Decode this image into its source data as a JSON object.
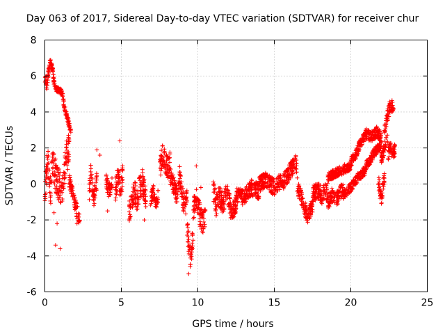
{
  "chart_data": {
    "type": "scatter",
    "title": "Day 063 of 2017, Sidereal Day-to-day VTEC variation (SDTVAR) for receiver chur",
    "xlabel": "GPS time / hours",
    "ylabel": "SDTVAR / TECUs",
    "xlim": [
      0,
      25
    ],
    "ylim": [
      -6,
      8
    ],
    "xticks": [
      0,
      5,
      10,
      15,
      20,
      25
    ],
    "yticks": [
      -6,
      -4,
      -2,
      0,
      2,
      4,
      6,
      8
    ],
    "xtick_labels": [
      "0",
      "5",
      "10",
      "15",
      "20",
      "25"
    ],
    "ytick_labels": [
      "-6",
      "-4",
      "-2",
      "0",
      "2",
      "4",
      "6",
      "8"
    ],
    "grid": true,
    "marker": "+",
    "color": "#ff0000",
    "series": [
      {
        "name": "SDTVAR",
        "segments": [
          {
            "x0": 0.0,
            "x1": 0.12,
            "pts": [
              [
                0.0,
                5.6
              ],
              [
                0.05,
                5.9
              ],
              [
                0.1,
                5.5
              ],
              [
                0.12,
                5.2
              ]
            ],
            "spread": 0.3
          },
          {
            "x0": 0.12,
            "x1": 0.35,
            "pts": [
              [
                0.12,
                5.2
              ],
              [
                0.2,
                6.0
              ],
              [
                0.3,
                6.6
              ],
              [
                0.35,
                6.8
              ]
            ],
            "spread": 0.2
          },
          {
            "x0": 0.35,
            "x1": 0.7,
            "pts": [
              [
                0.35,
                6.8
              ],
              [
                0.5,
                6.4
              ],
              [
                0.6,
                5.6
              ],
              [
                0.7,
                5.3
              ]
            ],
            "spread": 0.2
          },
          {
            "x0": 0.7,
            "x1": 1.2,
            "pts": [
              [
                0.7,
                5.3
              ],
              [
                0.9,
                5.2
              ],
              [
                1.1,
                5.1
              ],
              [
                1.2,
                4.8
              ]
            ],
            "spread": 0.15
          },
          {
            "x0": 1.2,
            "x1": 1.7,
            "pts": [
              [
                1.2,
                4.6
              ],
              [
                1.4,
                3.9
              ],
              [
                1.55,
                3.4
              ],
              [
                1.7,
                2.9
              ]
            ],
            "spread": 0.2
          },
          {
            "x0": 0.0,
            "x1": 0.4,
            "pts": [
              [
                0.0,
                -0.4
              ],
              [
                0.1,
                0.6
              ],
              [
                0.2,
                1.2
              ],
              [
                0.3,
                0.2
              ],
              [
                0.4,
                -0.6
              ]
            ],
            "spread": 0.8
          },
          {
            "x0": 0.4,
            "x1": 1.0,
            "pts": [
              [
                0.4,
                0.4
              ],
              [
                0.5,
                1.2
              ],
              [
                0.6,
                0.8
              ],
              [
                0.8,
                0.2
              ],
              [
                1.0,
                -0.2
              ]
            ],
            "spread": 0.9
          },
          {
            "x0": 1.0,
            "x1": 1.6,
            "pts": [
              [
                1.0,
                -0.6
              ],
              [
                1.2,
                0.0
              ],
              [
                1.4,
                1.6
              ],
              [
                1.6,
                2.2
              ]
            ],
            "spread": 0.8
          },
          {
            "x0": 1.6,
            "x1": 2.3,
            "pts": [
              [
                1.6,
                0.2
              ],
              [
                1.8,
                -0.4
              ],
              [
                2.0,
                -1.2
              ],
              [
                2.2,
                -1.8
              ],
              [
                2.3,
                -2.0
              ]
            ],
            "spread": 0.4
          },
          {
            "x0": 2.9,
            "x1": 3.4,
            "pts": [
              [
                2.9,
                -0.5
              ],
              [
                3.0,
                0.6
              ],
              [
                3.2,
                -0.8
              ],
              [
                3.4,
                0.2
              ]
            ],
            "spread": 0.5
          },
          {
            "x0": 4.0,
            "x1": 4.4,
            "pts": [
              [
                4.0,
                0.2
              ],
              [
                4.2,
                -0.4
              ],
              [
                4.4,
                0.0
              ]
            ],
            "spread": 0.4
          },
          {
            "x0": 4.6,
            "x1": 5.1,
            "pts": [
              [
                4.6,
                -0.4
              ],
              [
                4.8,
                0.4
              ],
              [
                5.0,
                -0.2
              ],
              [
                5.1,
                0.8
              ]
            ],
            "spread": 0.7
          },
          {
            "x0": 5.5,
            "x1": 6.0,
            "pts": [
              [
                5.5,
                -1.6
              ],
              [
                5.7,
                -0.8
              ],
              [
                5.9,
                -0.4
              ],
              [
                6.0,
                -1.0
              ]
            ],
            "spread": 0.6
          },
          {
            "x0": 6.0,
            "x1": 6.6,
            "pts": [
              [
                6.0,
                -1.2
              ],
              [
                6.2,
                -0.2
              ],
              [
                6.4,
                0.2
              ],
              [
                6.6,
                -0.8
              ]
            ],
            "spread": 0.7
          },
          {
            "x0": 6.9,
            "x1": 7.4,
            "pts": [
              [
                6.9,
                -0.8
              ],
              [
                7.1,
                -0.4
              ],
              [
                7.3,
                -1.2
              ],
              [
                7.4,
                -0.6
              ]
            ],
            "spread": 0.4
          },
          {
            "x0": 7.5,
            "x1": 8.2,
            "pts": [
              [
                7.5,
                0.8
              ],
              [
                7.7,
                1.6
              ],
              [
                7.9,
                1.2
              ],
              [
                8.1,
                0.8
              ],
              [
                8.2,
                1.4
              ]
            ],
            "spread": 0.6
          },
          {
            "x0": 8.2,
            "x1": 8.8,
            "pts": [
              [
                8.2,
                0.4
              ],
              [
                8.4,
                0.0
              ],
              [
                8.6,
                -0.6
              ],
              [
                8.8,
                -0.2
              ]
            ],
            "spread": 0.5
          },
          {
            "x0": 8.8,
            "x1": 9.3,
            "pts": [
              [
                8.8,
                0.6
              ],
              [
                9.0,
                -0.8
              ],
              [
                9.2,
                -1.2
              ],
              [
                9.3,
                -0.6
              ]
            ],
            "spread": 0.6
          },
          {
            "x0": 9.3,
            "x1": 9.7,
            "pts": [
              [
                9.3,
                -2.4
              ],
              [
                9.4,
                -3.2
              ],
              [
                9.5,
                -4.2
              ],
              [
                9.6,
                -3.6
              ],
              [
                9.7,
                -2.6
              ]
            ],
            "spread": 0.6
          },
          {
            "x0": 9.7,
            "x1": 10.5,
            "pts": [
              [
                9.7,
                -1.4
              ],
              [
                9.9,
                -0.8
              ],
              [
                10.1,
                -1.6
              ],
              [
                10.3,
                -2.2
              ],
              [
                10.5,
                -1.8
              ]
            ],
            "spread": 0.6
          },
          {
            "x0": 11.0,
            "x1": 11.6,
            "pts": [
              [
                11.0,
                -0.2
              ],
              [
                11.2,
                -1.2
              ],
              [
                11.4,
                -0.6
              ],
              [
                11.6,
                -1.0
              ]
            ],
            "spread": 0.6
          },
          {
            "x0": 11.6,
            "x1": 12.5,
            "pts": [
              [
                11.6,
                -1.4
              ],
              [
                11.9,
                -0.4
              ],
              [
                12.2,
                -1.6
              ],
              [
                12.5,
                -1.2
              ]
            ],
            "spread": 0.5
          },
          {
            "x0": 12.5,
            "x1": 14.0,
            "pts": [
              [
                12.5,
                -0.6
              ],
              [
                13.0,
                -0.8
              ],
              [
                13.5,
                -0.2
              ],
              [
                14.0,
                -0.4
              ]
            ],
            "spread": 0.45
          },
          {
            "x0": 14.0,
            "x1": 15.5,
            "pts": [
              [
                14.0,
                0.0
              ],
              [
                14.5,
                0.2
              ],
              [
                15.0,
                -0.2
              ],
              [
                15.5,
                0.2
              ]
            ],
            "spread": 0.45
          },
          {
            "x0": 15.5,
            "x1": 16.5,
            "pts": [
              [
                15.5,
                0.0
              ],
              [
                15.8,
                0.4
              ],
              [
                16.1,
                0.8
              ],
              [
                16.4,
                1.2
              ],
              [
                16.5,
                0.6
              ]
            ],
            "spread": 0.45
          },
          {
            "x0": 16.5,
            "x1": 17.5,
            "pts": [
              [
                16.5,
                -0.2
              ],
              [
                16.8,
                -0.8
              ],
              [
                17.0,
                -1.4
              ],
              [
                17.2,
                -1.8
              ],
              [
                17.5,
                -1.2
              ]
            ],
            "spread": 0.4
          },
          {
            "x0": 17.5,
            "x1": 18.5,
            "pts": [
              [
                17.5,
                -0.6
              ],
              [
                17.8,
                -0.4
              ],
              [
                18.1,
                -0.6
              ],
              [
                18.5,
                -0.4
              ]
            ],
            "spread": 0.5
          },
          {
            "x0": 18.5,
            "x1": 19.5,
            "pts": [
              [
                18.5,
                -1.0
              ],
              [
                18.8,
                -0.6
              ],
              [
                19.1,
                -0.8
              ],
              [
                19.5,
                -0.2
              ]
            ],
            "spread": 0.4
          },
          {
            "x0": 18.5,
            "x1": 20.0,
            "pts": [
              [
                18.5,
                0.4
              ],
              [
                19.0,
                0.6
              ],
              [
                19.5,
                0.8
              ],
              [
                20.0,
                1.0
              ]
            ],
            "spread": 0.25
          },
          {
            "x0": 19.5,
            "x1": 21.0,
            "pts": [
              [
                19.5,
                -0.6
              ],
              [
                20.0,
                -0.2
              ],
              [
                20.5,
                0.4
              ],
              [
                21.0,
                0.8
              ]
            ],
            "spread": 0.25
          },
          {
            "x0": 20.0,
            "x1": 21.0,
            "pts": [
              [
                20.0,
                1.2
              ],
              [
                20.3,
                1.6
              ],
              [
                20.6,
                2.2
              ],
              [
                21.0,
                2.8
              ]
            ],
            "spread": 0.25
          },
          {
            "x0": 21.0,
            "x1": 22.0,
            "pts": [
              [
                21.0,
                1.0
              ],
              [
                21.3,
                1.4
              ],
              [
                21.6,
                1.8
              ],
              [
                22.0,
                2.2
              ]
            ],
            "spread": 0.25
          },
          {
            "x0": 21.0,
            "x1": 22.0,
            "pts": [
              [
                21.0,
                2.8
              ],
              [
                21.4,
                2.6
              ],
              [
                21.7,
                2.9
              ],
              [
                22.0,
                2.6
              ]
            ],
            "spread": 0.3
          },
          {
            "x0": 21.8,
            "x1": 22.2,
            "pts": [
              [
                21.8,
                0.2
              ],
              [
                21.9,
                -0.4
              ],
              [
                22.0,
                -0.8
              ],
              [
                22.1,
                -0.2
              ],
              [
                22.2,
                0.4
              ]
            ],
            "spread": 0.4
          },
          {
            "x0": 22.0,
            "x1": 22.4,
            "pts": [
              [
                22.0,
                1.4
              ],
              [
                22.2,
                2.0
              ],
              [
                22.4,
                2.6
              ]
            ],
            "spread": 0.3
          },
          {
            "x0": 22.2,
            "x1": 22.8,
            "pts": [
              [
                22.2,
                3.0
              ],
              [
                22.4,
                3.8
              ],
              [
                22.6,
                4.4
              ],
              [
                22.8,
                4.2
              ]
            ],
            "spread": 0.35
          },
          {
            "x0": 22.4,
            "x1": 22.9,
            "pts": [
              [
                22.4,
                1.6
              ],
              [
                22.6,
                2.0
              ],
              [
                22.8,
                1.6
              ],
              [
                22.9,
                2.0
              ]
            ],
            "spread": 0.35
          }
        ],
        "outliers": [
          [
            0.7,
            -3.4
          ],
          [
            1.0,
            -3.6
          ],
          [
            0.6,
            -1.6
          ],
          [
            0.8,
            -2.2
          ],
          [
            4.9,
            2.4
          ],
          [
            3.4,
            1.9
          ],
          [
            3.6,
            1.6
          ],
          [
            9.4,
            -5.0
          ],
          [
            9.5,
            -4.6
          ],
          [
            10.2,
            -0.2
          ],
          [
            2.1,
            -2.2
          ],
          [
            4.1,
            -1.5
          ],
          [
            6.5,
            -2.0
          ],
          [
            1.5,
            0.8
          ],
          [
            9.9,
            1.0
          ]
        ]
      }
    ]
  }
}
